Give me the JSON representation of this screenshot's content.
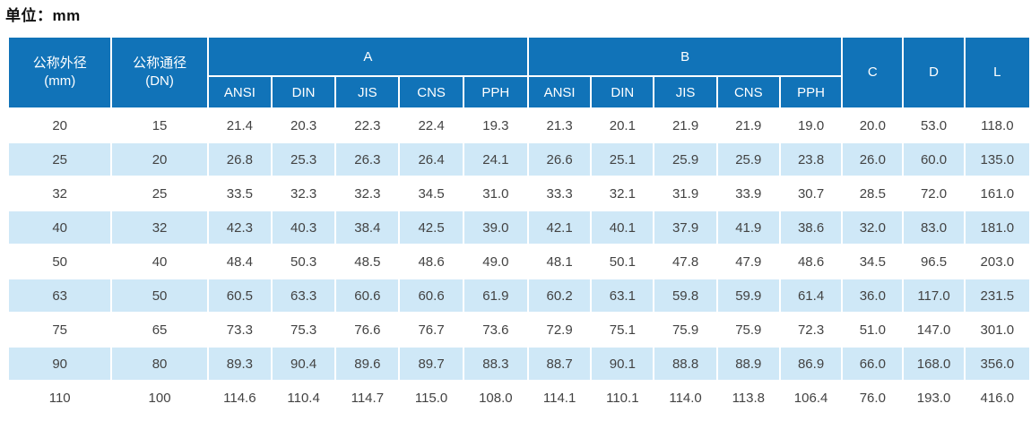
{
  "unit_label": "单位：mm",
  "colors": {
    "header_bg": "#1173b8",
    "header_text": "#ffffff",
    "alt_row_bg": "#cfe8f7",
    "body_text": "#434343"
  },
  "table": {
    "col_outer_diameter": {
      "line1": "公称外径",
      "line2": "(mm)"
    },
    "col_nominal_diameter": {
      "line1": "公称通径",
      "line2": "(DN)"
    },
    "group_a_label": "A",
    "group_b_label": "B",
    "sub_headers_a": [
      "ANSI",
      "DIN",
      "JIS",
      "CNS",
      "PPH"
    ],
    "sub_headers_b": [
      "ANSI",
      "DIN",
      "JIS",
      "CNS",
      "PPH"
    ],
    "col_c_label": "C",
    "col_d_label": "D",
    "col_l_label": "L",
    "rows": [
      [
        "20",
        "15",
        "21.4",
        "20.3",
        "22.3",
        "22.4",
        "19.3",
        "21.3",
        "20.1",
        "21.9",
        "21.9",
        "19.0",
        "20.0",
        "53.0",
        "118.0"
      ],
      [
        "25",
        "20",
        "26.8",
        "25.3",
        "26.3",
        "26.4",
        "24.1",
        "26.6",
        "25.1",
        "25.9",
        "25.9",
        "23.8",
        "26.0",
        "60.0",
        "135.0"
      ],
      [
        "32",
        "25",
        "33.5",
        "32.3",
        "32.3",
        "34.5",
        "31.0",
        "33.3",
        "32.1",
        "31.9",
        "33.9",
        "30.7",
        "28.5",
        "72.0",
        "161.0"
      ],
      [
        "40",
        "32",
        "42.3",
        "40.3",
        "38.4",
        "42.5",
        "39.0",
        "42.1",
        "40.1",
        "37.9",
        "41.9",
        "38.6",
        "32.0",
        "83.0",
        "181.0"
      ],
      [
        "50",
        "40",
        "48.4",
        "50.3",
        "48.5",
        "48.6",
        "49.0",
        "48.1",
        "50.1",
        "47.8",
        "47.9",
        "48.6",
        "34.5",
        "96.5",
        "203.0"
      ],
      [
        "63",
        "50",
        "60.5",
        "63.3",
        "60.6",
        "60.6",
        "61.9",
        "60.2",
        "63.1",
        "59.8",
        "59.9",
        "61.4",
        "36.0",
        "117.0",
        "231.5"
      ],
      [
        "75",
        "65",
        "73.3",
        "75.3",
        "76.6",
        "76.7",
        "73.6",
        "72.9",
        "75.1",
        "75.9",
        "75.9",
        "72.3",
        "51.0",
        "147.0",
        "301.0"
      ],
      [
        "90",
        "80",
        "89.3",
        "90.4",
        "89.6",
        "89.7",
        "88.3",
        "88.7",
        "90.1",
        "88.8",
        "88.9",
        "86.9",
        "66.0",
        "168.0",
        "356.0"
      ],
      [
        "110",
        "100",
        "114.6",
        "110.4",
        "114.7",
        "115.0",
        "108.0",
        "114.1",
        "110.1",
        "114.0",
        "113.8",
        "106.4",
        "76.0",
        "193.0",
        "416.0"
      ]
    ]
  }
}
